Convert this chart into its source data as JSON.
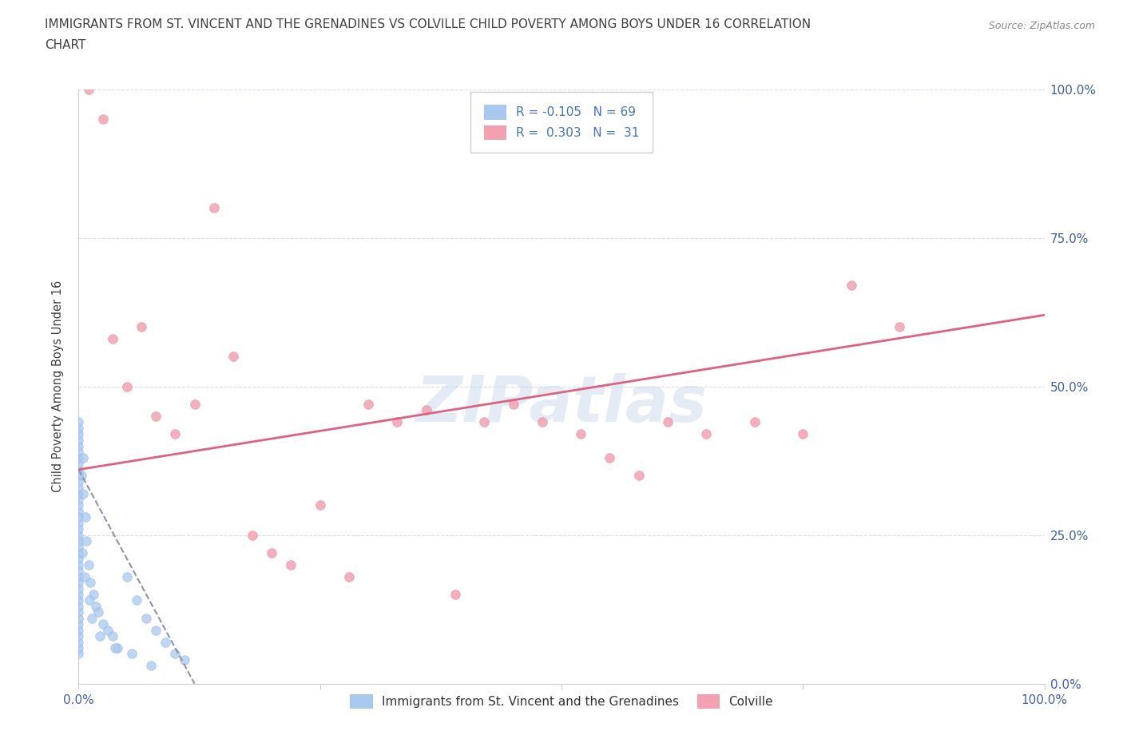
{
  "title_line1": "IMMIGRANTS FROM ST. VINCENT AND THE GRENADINES VS COLVILLE CHILD POVERTY AMONG BOYS UNDER 16 CORRELATION",
  "title_line2": "CHART",
  "source": "Source: ZipAtlas.com",
  "ylabel": "Child Poverty Among Boys Under 16",
  "blue_label": "Immigrants from St. Vincent and the Grenadines",
  "pink_label": "Colville",
  "blue_R": -0.105,
  "blue_N": 69,
  "pink_R": 0.303,
  "pink_N": 31,
  "blue_color": "#a8c8f0",
  "pink_color": "#f4a0b0",
  "trend_pink_color": "#e06080",
  "trend_blue_color": "#9090a8",
  "blue_x": [
    0.0,
    0.0,
    0.0,
    0.0,
    0.0,
    0.0,
    0.0,
    0.0,
    0.0,
    0.0,
    0.0,
    0.0,
    0.0,
    0.0,
    0.0,
    0.0,
    0.0,
    0.0,
    0.0,
    0.0,
    0.0,
    0.0,
    0.0,
    0.0,
    0.0,
    0.0,
    0.0,
    0.0,
    0.0,
    0.0,
    0.0,
    0.0,
    0.0,
    0.0,
    0.0,
    0.0,
    0.0,
    0.0,
    0.0,
    0.0,
    0.5,
    0.5,
    0.7,
    0.8,
    1.0,
    1.2,
    1.5,
    1.8,
    2.0,
    2.5,
    3.0,
    3.5,
    4.0,
    5.0,
    6.0,
    7.0,
    8.0,
    9.0,
    10.0,
    11.0,
    0.3,
    0.4,
    0.6,
    1.1,
    1.4,
    2.2,
    3.8,
    5.5,
    7.5
  ],
  "blue_y": [
    5,
    6,
    7,
    8,
    9,
    10,
    11,
    12,
    13,
    14,
    15,
    16,
    17,
    18,
    19,
    20,
    21,
    22,
    23,
    24,
    25,
    26,
    27,
    28,
    29,
    30,
    31,
    32,
    33,
    34,
    35,
    36,
    37,
    38,
    39,
    40,
    41,
    42,
    43,
    44,
    38,
    32,
    28,
    24,
    20,
    17,
    15,
    13,
    12,
    10,
    9,
    8,
    6,
    18,
    14,
    11,
    9,
    7,
    5,
    4,
    35,
    22,
    18,
    14,
    11,
    8,
    6,
    5,
    3
  ],
  "pink_x": [
    1.0,
    2.5,
    3.5,
    5.0,
    6.5,
    8.0,
    10.0,
    12.0,
    14.0,
    16.0,
    18.0,
    20.0,
    22.0,
    25.0,
    28.0,
    30.0,
    33.0,
    36.0,
    39.0,
    42.0,
    45.0,
    48.0,
    52.0,
    55.0,
    58.0,
    61.0,
    65.0,
    70.0,
    75.0,
    80.0,
    85.0
  ],
  "pink_y": [
    100.0,
    95.0,
    58.0,
    50.0,
    60.0,
    45.0,
    42.0,
    47.0,
    80.0,
    55.0,
    25.0,
    22.0,
    20.0,
    30.0,
    18.0,
    47.0,
    44.0,
    46.0,
    15.0,
    44.0,
    47.0,
    44.0,
    42.0,
    38.0,
    35.0,
    44.0,
    42.0,
    44.0,
    42.0,
    67.0,
    60.0
  ],
  "watermark": "ZIPatlas",
  "background_color": "#ffffff",
  "grid_color": "#d8dce8",
  "title_color": "#404040",
  "axis_label_color": "#4060a0",
  "legend_R_color": "#4472c4"
}
